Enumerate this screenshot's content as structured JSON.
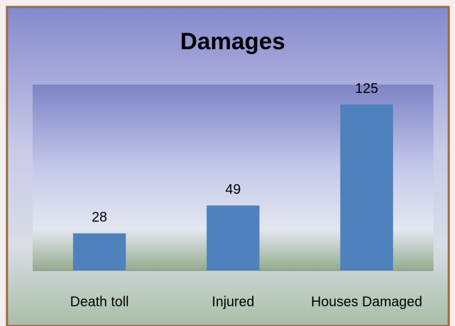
{
  "chart_data": {
    "type": "bar",
    "title": "Damages",
    "categories": [
      "Death toll",
      "Injured",
      "Houses Damaged"
    ],
    "values": [
      28,
      49,
      125
    ],
    "color": "#4f81bd",
    "ylim": [
      0,
      140
    ]
  }
}
